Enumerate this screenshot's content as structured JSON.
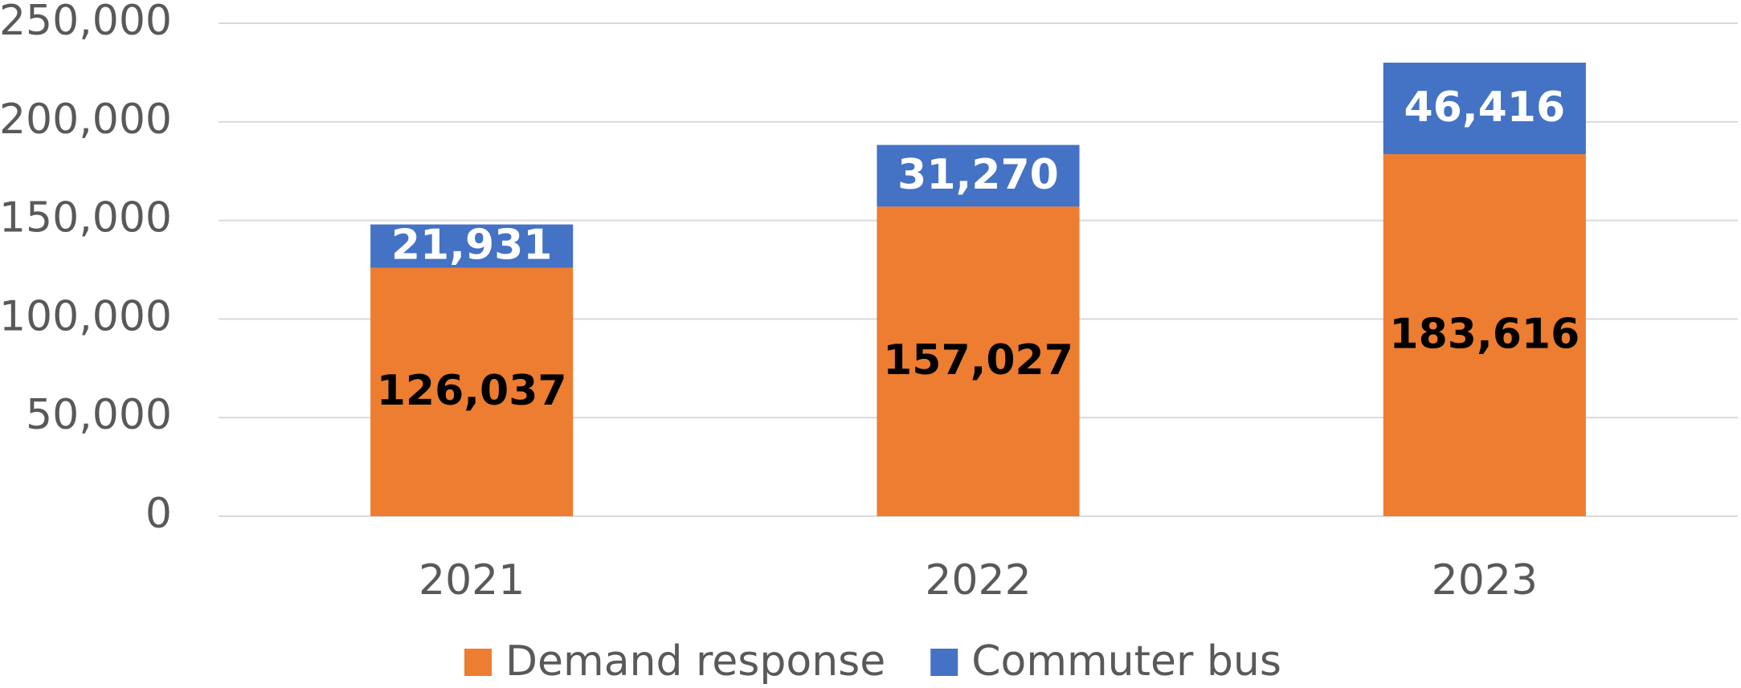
{
  "chart_data": {
    "type": "stacked_bar",
    "categories": [
      "2021",
      "2022",
      "2023"
    ],
    "series": [
      {
        "name": "Demand response",
        "color": "#ED7D31",
        "values": [
          126037,
          157027,
          183616
        ],
        "value_labels": [
          "126,037",
          "157,027",
          "183,616"
        ],
        "label_color": "#000000"
      },
      {
        "name": "Commuter bus",
        "color": "#4472C4",
        "values": [
          21931,
          31270,
          46416
        ],
        "value_labels": [
          "21,931",
          "31,270",
          "46,416"
        ],
        "label_color": "#FFFFFF"
      }
    ],
    "ylim": [
      0,
      250000
    ],
    "yticks": [
      0,
      {
        "value": 50000,
        "label": "50,000"
      },
      {
        "value": 100000,
        "label": "100,000"
      },
      {
        "value": 150000,
        "label": "150,000"
      },
      {
        "value": 200000,
        "label": "200,000"
      },
      {
        "value": 250000,
        "label": "250,000"
      }
    ],
    "grid": true,
    "legend": "bottom"
  }
}
